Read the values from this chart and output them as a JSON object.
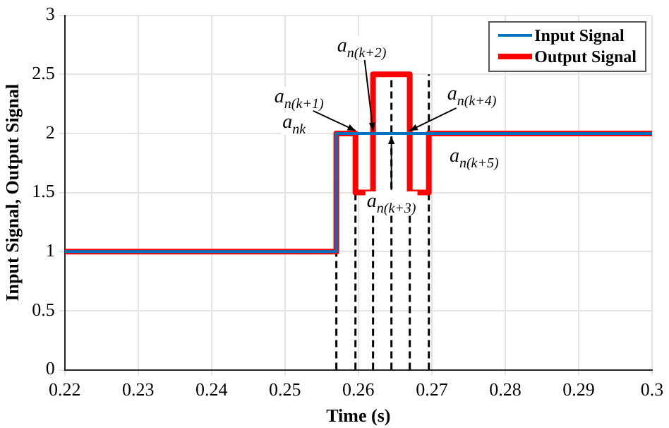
{
  "chart_data": {
    "type": "step",
    "xlabel": "Time (s)",
    "ylabel": "Input Signal, Output Signal",
    "series": [
      {
        "name": "Input Signal",
        "color": "#0072bd",
        "x": [
          0.22,
          0.257,
          0.3
        ],
        "values": [
          1,
          2,
          2
        ]
      },
      {
        "name": "Output Signal",
        "color": "#ff0000",
        "x": [
          0.22,
          0.257,
          0.2596,
          0.262,
          0.267,
          0.2696,
          0.3
        ],
        "values": [
          1,
          2,
          1.5,
          2.5,
          1.5,
          2,
          2
        ]
      }
    ],
    "xlim": [
      0.22,
      0.3
    ],
    "xticks": [
      0.22,
      0.23,
      0.24,
      0.25,
      0.26,
      0.27,
      0.28,
      0.29,
      0.3
    ],
    "ylim": [
      0,
      3
    ],
    "yticks": [
      0,
      0.5,
      1,
      1.5,
      2,
      2.5,
      3
    ],
    "ref_lines": [
      {
        "axis": "x",
        "value": 0.257,
        "color": "#000000",
        "line_style": "dashed"
      },
      {
        "axis": "x",
        "value": 0.2596,
        "color": "#000000",
        "line_style": "dashed"
      },
      {
        "axis": "x",
        "value": 0.262,
        "color": "#000000",
        "line_style": "dashed"
      },
      {
        "axis": "x",
        "value": 0.2645,
        "color": "#000000",
        "line_style": "dashed"
      },
      {
        "axis": "x",
        "value": 0.267,
        "color": "#000000",
        "line_style": "dashed"
      },
      {
        "axis": "x",
        "value": 0.2696,
        "color": "#000000",
        "line_style": "dashed"
      }
    ],
    "annotations": [
      {
        "text": "a$_{nk}$",
        "x": 0.257,
        "y": 2
      },
      {
        "text": "a$_{n(k+1)}$",
        "x": 0.2596,
        "y": 2
      },
      {
        "text": "a$_{n(k+2)}$",
        "x": 0.262,
        "y": 2
      },
      {
        "text": "a$_{n(k+3)}$",
        "x": 0.2645,
        "y": 2
      },
      {
        "text": "a$_{n(k+4)}$",
        "x": 0.267,
        "y": 2
      },
      {
        "text": "a$_{n(k+5)}$",
        "x": 0.2696,
        "y": 2
      }
    ],
    "grid": true,
    "legend": "top right",
    "marker": "none",
    "line_style": "solid"
  }
}
